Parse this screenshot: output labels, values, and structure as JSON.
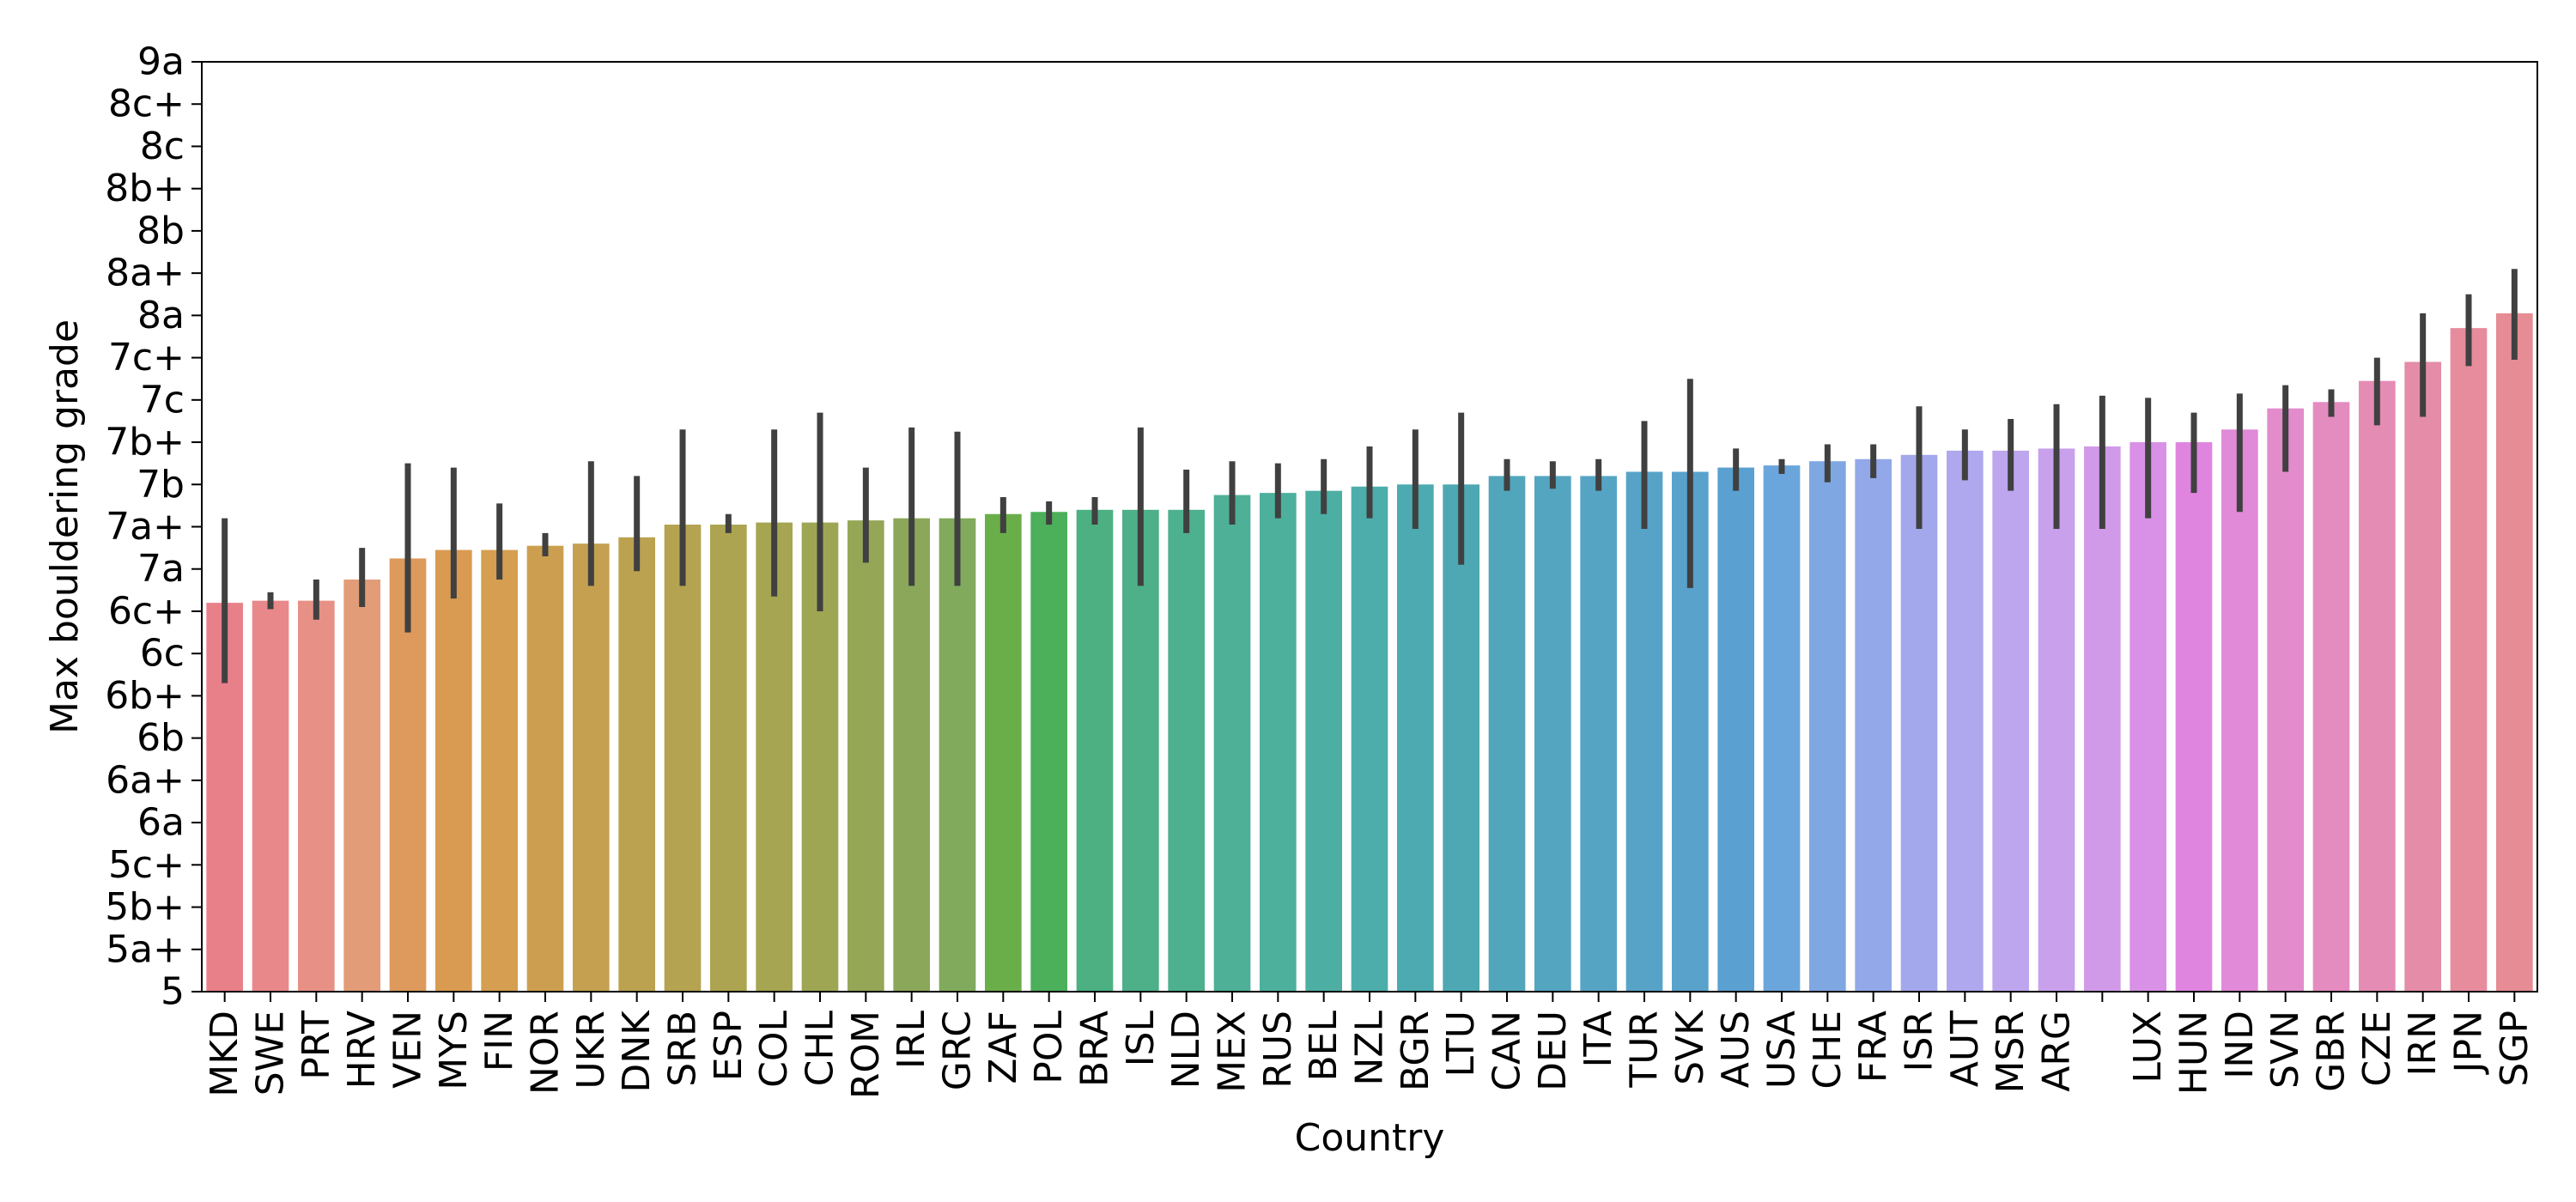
{
  "chart_data": {
    "type": "bar",
    "xlabel": "Country",
    "ylabel": "Max bouldering grade",
    "y_tick_labels": [
      "5",
      "5a+",
      "5b+",
      "5c+",
      "6a",
      "6a+",
      "6b",
      "6b+",
      "6c",
      "6c+",
      "7a",
      "7a+",
      "7b",
      "7b+",
      "7c",
      "7c+",
      "8a",
      "8a+",
      "8b",
      "8b+",
      "8c",
      "8c+",
      "9a"
    ],
    "ylim": [
      0,
      22
    ],
    "grid": false,
    "categories": [
      "MKD",
      "SWE",
      "PRT",
      "HRV",
      "VEN",
      "MYS",
      "FIN",
      "NOR",
      "UKR",
      "DNK",
      "SRB",
      "ESP",
      "COL",
      "CHL",
      "ROM",
      "IRL",
      "GRC",
      "ZAF",
      "POL",
      "BRA",
      "ISL",
      "NLD",
      "MEX",
      "RUS",
      "BEL",
      "NZL",
      "BGR",
      "LTU",
      "CAN",
      "DEU",
      "ITA",
      "TUR",
      "SVK",
      "AUS",
      "USA",
      "CHE",
      "FRA",
      "ISR",
      "AUT",
      "MSR",
      "ARG",
      "",
      "LUX",
      "HUN",
      "IND",
      "SVN",
      "GBR",
      "CZE",
      "IRN",
      "JPN",
      "SGP"
    ],
    "values": [
      9.2,
      9.25,
      9.25,
      9.75,
      10.25,
      10.45,
      10.45,
      10.55,
      10.6,
      10.75,
      11.05,
      11.05,
      11.1,
      11.1,
      11.15,
      11.2,
      11.2,
      11.3,
      11.35,
      11.4,
      11.4,
      11.4,
      11.75,
      11.8,
      11.85,
      11.95,
      12.0,
      12.0,
      12.2,
      12.2,
      12.2,
      12.3,
      12.3,
      12.4,
      12.45,
      12.55,
      12.6,
      12.7,
      12.8,
      12.8,
      12.85,
      12.9,
      13.0,
      13.0,
      13.3,
      13.8,
      13.95,
      14.45,
      14.9,
      15.7,
      16.05
    ],
    "error_low": [
      7.3,
      9.05,
      8.8,
      9.1,
      8.5,
      9.3,
      9.75,
      10.3,
      9.6,
      9.95,
      9.6,
      10.85,
      9.35,
      9.0,
      10.15,
      9.6,
      9.6,
      10.85,
      11.05,
      11.05,
      9.6,
      10.85,
      11.05,
      11.2,
      11.3,
      11.2,
      10.95,
      10.1,
      11.85,
      11.9,
      11.85,
      10.95,
      9.55,
      11.85,
      12.25,
      12.05,
      12.15,
      10.95,
      12.1,
      11.85,
      10.95,
      10.95,
      11.2,
      11.8,
      11.35,
      12.3,
      13.6,
      13.4,
      13.6,
      14.8,
      14.95
    ],
    "error_high": [
      11.2,
      9.45,
      9.75,
      10.5,
      12.5,
      12.4,
      11.55,
      10.85,
      12.55,
      12.2,
      13.3,
      11.3,
      13.3,
      13.7,
      12.4,
      13.35,
      13.25,
      11.7,
      11.6,
      11.7,
      13.35,
      12.35,
      12.55,
      12.5,
      12.6,
      12.9,
      13.3,
      13.7,
      12.6,
      12.55,
      12.6,
      13.5,
      14.5,
      12.85,
      12.6,
      12.95,
      12.95,
      13.85,
      13.3,
      13.55,
      13.9,
      14.1,
      14.05,
      13.7,
      14.15,
      14.35,
      14.25,
      15.0,
      16.05,
      16.5,
      17.1
    ],
    "colors": [
      "#e8808a",
      "#e8888a",
      "#e79186",
      "#e29c77",
      "#dd9a5c",
      "#d99b52",
      "#d59e50",
      "#cc9f50",
      "#c4a050",
      "#bba250",
      "#b4a350",
      "#aca450",
      "#a5a552",
      "#9ea654",
      "#95a757",
      "#8ba85a",
      "#81aa5c",
      "#6aae4a",
      "#4caf59",
      "#4db082",
      "#4db089",
      "#4db08f",
      "#4db097",
      "#4db09d",
      "#4dafa3",
      "#4dadaa",
      "#4daab0",
      "#4da8b4",
      "#52a6bb",
      "#54a5c0",
      "#56a4c4",
      "#57a3c8",
      "#58a2cc",
      "#5aa1d2",
      "#6aa6dc",
      "#7fa8e2",
      "#92a8e8",
      "#a3a8ec",
      "#afa8ee",
      "#bda6ee",
      "#c8a0ec",
      "#d19ae9",
      "#d891e6",
      "#df85e0",
      "#e08ad8",
      "#e28ccc",
      "#e48cc0",
      "#e48cb4",
      "#e58ca8",
      "#e68c9d",
      "#e68c94"
    ]
  }
}
